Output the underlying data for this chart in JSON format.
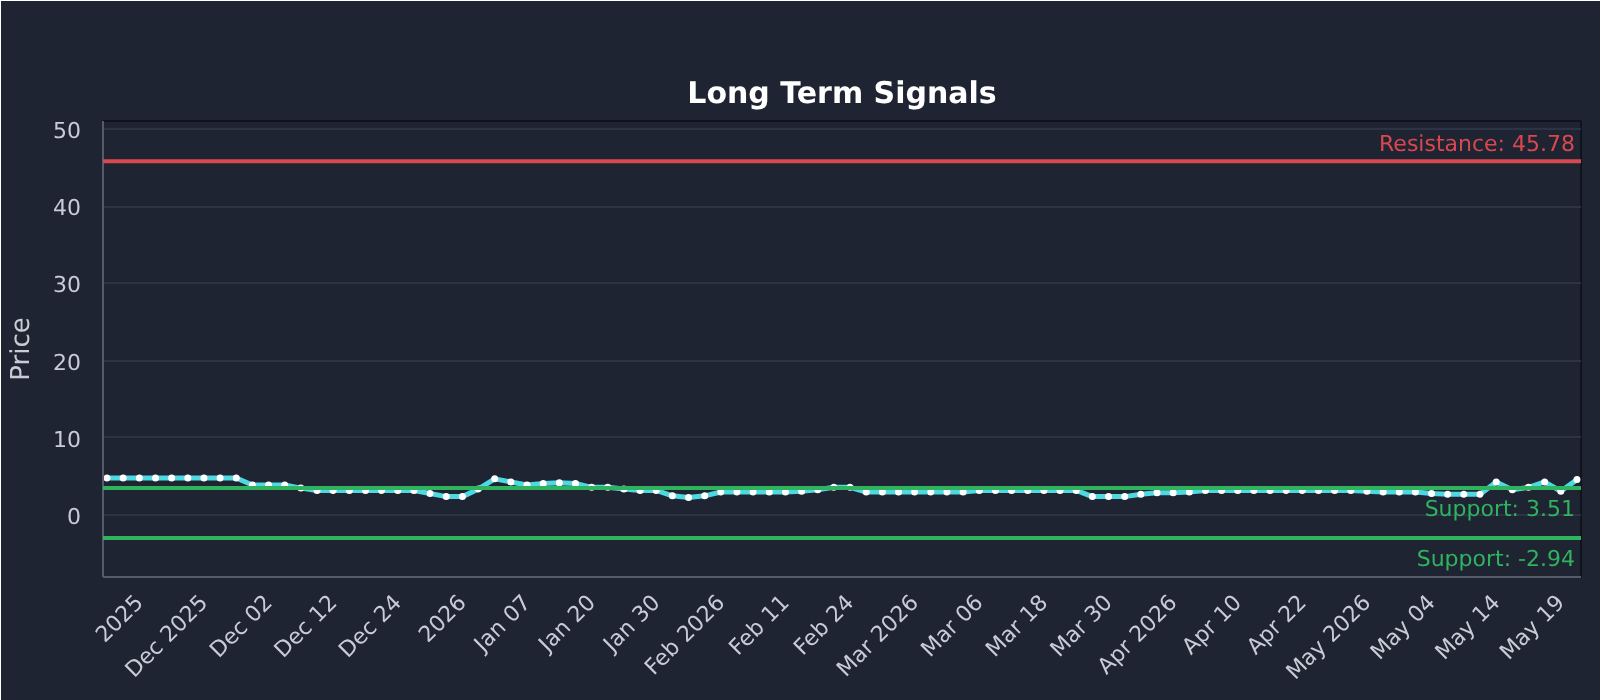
{
  "chart_data": {
    "type": "line",
    "title": "Long Term Signals",
    "ylabel": "Price",
    "categories": [
      null,
      null,
      "2025",
      null,
      null,
      null,
      "Dec 2025",
      null,
      null,
      null,
      "Dec 02",
      null,
      null,
      null,
      "Dec 12",
      null,
      null,
      null,
      "Dec 24",
      null,
      null,
      null,
      "2026",
      null,
      null,
      null,
      "Jan 07",
      null,
      null,
      null,
      "Jan 20",
      null,
      null,
      null,
      "Jan 30",
      null,
      null,
      null,
      "Feb 2026",
      null,
      null,
      null,
      "Feb 11",
      null,
      null,
      null,
      "Feb 24",
      null,
      null,
      null,
      "Mar 2026",
      null,
      null,
      null,
      "Mar 06",
      null,
      null,
      null,
      "Mar 18",
      null,
      null,
      null,
      "Mar 30",
      null,
      null,
      null,
      "Apr 2026",
      null,
      null,
      null,
      "Apr 10",
      null,
      null,
      null,
      "Apr 22",
      null,
      null,
      null,
      "May 2026",
      null,
      null,
      null,
      "May 04",
      null,
      null,
      null,
      "May 14",
      null,
      null,
      null,
      "May 19",
      null
    ],
    "series": [
      {
        "color": "#4fd8e0",
        "values": [
          4.8,
          4.8,
          4.8,
          4.8,
          4.8,
          4.8,
          4.8,
          4.8,
          4.8,
          3.9,
          3.9,
          3.9,
          3.5,
          3.2,
          3.2,
          3.2,
          3.2,
          3.2,
          3.2,
          3.2,
          2.8,
          2.4,
          2.4,
          3.4,
          4.7,
          4.3,
          3.9,
          4.1,
          4.2,
          4.1,
          3.6,
          3.6,
          3.4,
          3.2,
          3.2,
          2.5,
          2.3,
          2.5,
          3.0,
          3.0,
          3.0,
          3.0,
          3.0,
          3.1,
          3.3,
          3.6,
          3.6,
          3.0,
          3.0,
          3.0,
          3.0,
          3.0,
          3.0,
          3.0,
          3.2,
          3.2,
          3.2,
          3.2,
          3.2,
          3.2,
          3.2,
          2.4,
          2.4,
          2.4,
          2.7,
          2.9,
          2.9,
          3.0,
          3.2,
          3.2,
          3.2,
          3.2,
          3.2,
          3.2,
          3.2,
          3.2,
          3.2,
          3.2,
          3.1,
          3.0,
          3.0,
          3.0,
          2.8,
          2.7,
          2.7,
          2.7,
          4.3,
          3.3,
          3.6,
          4.3,
          3.1,
          4.6
        ]
      }
    ],
    "ylim": [
      -8,
      51
    ],
    "yticks": [
      0,
      10,
      20,
      30,
      40,
      50
    ],
    "ref_lines": [
      {
        "axis": "y",
        "value": 45.78,
        "label": "Resistance: 45.78",
        "color": "#d9484f"
      },
      {
        "axis": "y",
        "value": 3.51,
        "label": "Support: 3.51",
        "color": "#2fb35f"
      },
      {
        "axis": "y",
        "value": -2.94,
        "label": "Support: -2.94",
        "color": "#2fb35f"
      }
    ],
    "grid": "y",
    "marker": "circle",
    "line_style": "solid"
  }
}
